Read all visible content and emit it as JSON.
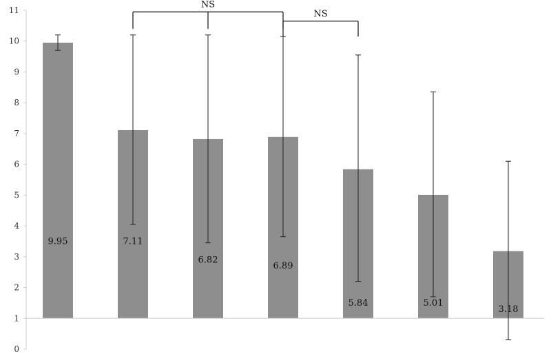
{
  "chart_data": {
    "type": "bar",
    "categories": [
      "",
      "",
      "",
      "",
      "",
      "",
      ""
    ],
    "values": [
      9.95,
      7.11,
      6.82,
      6.89,
      5.84,
      5.01,
      3.18
    ],
    "error_bars": [
      {
        "low": 9.7,
        "high": 10.2
      },
      {
        "low": 4.05,
        "high": 10.2
      },
      {
        "low": 3.45,
        "high": 10.2
      },
      {
        "low": 3.65,
        "high": 10.15
      },
      {
        "low": 2.2,
        "high": 9.55
      },
      {
        "low": 1.7,
        "high": 8.35
      },
      {
        "low": 0.3,
        "high": 6.1
      }
    ],
    "data_labels": [
      "9.95",
      "7.11",
      "6.82",
      "6.89",
      "5.84",
      "5.01",
      "3.18"
    ],
    "data_label_values": [
      3.5,
      3.5,
      2.9,
      2.7,
      1.5,
      1.5,
      1.3
    ],
    "title": "",
    "xlabel": "",
    "ylabel": "",
    "ylim": [
      0,
      11
    ],
    "yticks": [
      0,
      1,
      2,
      3,
      4,
      5,
      6,
      7,
      8,
      9,
      10,
      11
    ],
    "bar_baseline": 1,
    "grid": false,
    "legend": "none",
    "bar_color": "#8e8e8e",
    "annotations": [
      {
        "text": "NS",
        "from_bar": 1,
        "to_bar": 3,
        "mid_bar": 2,
        "y": 10.95,
        "drop_to": 10.4,
        "text_y": 11.1
      },
      {
        "text": "NS",
        "from_bar": 3,
        "to_bar": 4,
        "y": 10.65,
        "drop_to": 10.15,
        "text_y": 10.8
      }
    ]
  }
}
